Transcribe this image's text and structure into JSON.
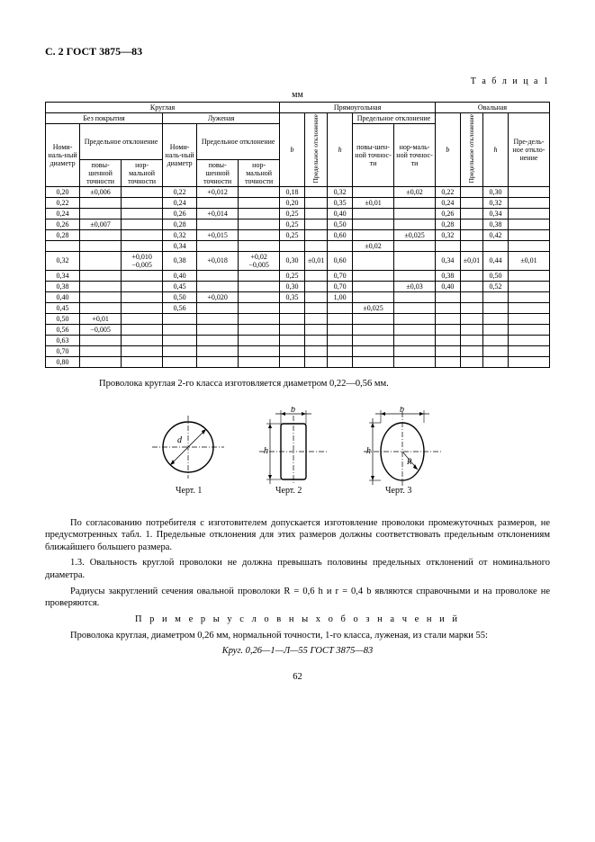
{
  "header": "С. 2 ГОСТ 3875—83",
  "tableLabel": "Т а б л и ц а 1",
  "unit": "мм",
  "headers": {
    "kruglaya": "Круглая",
    "pryam": "Прямоугольная",
    "oval": "Овальная",
    "bezpokr": "Без покрытия",
    "luzh": "Луженая",
    "nomdiam": "Номи-наль-ный диаметр",
    "predotk": "Предельное отклонение",
    "pov": "повы-шенной точности",
    "norm": "нор-мальной точности",
    "b": "b",
    "h": "h",
    "predotk_v": "Предельное отклонение",
    "pov2": "повы-шен-ной точнос-ти",
    "norm2": "нор-маль-ной точнос-ти",
    "predeln": "Пре-дель-ное откло-нение"
  },
  "rows": [
    {
      "d": "0,20",
      "t1": "±0,006",
      "t2": "",
      "ld": "0,22",
      "lt1": "+0,012",
      "lt2": "",
      "pb": "0,18",
      "pv": "",
      "ph": "0,32",
      "pt1": "",
      "pt2": "±0,02",
      "ob": "0,22",
      "ov": "",
      "oh": "0,30",
      "ot": ""
    },
    {
      "d": "0,22",
      "t1": "",
      "t2": "",
      "ld": "0,24",
      "lt1": "",
      "lt2": "",
      "pb": "0,20",
      "pv": "",
      "ph": "0,35",
      "pt1": "±0,01",
      "pt2": "",
      "ob": "0,24",
      "ov": "",
      "oh": "0,32",
      "ot": ""
    },
    {
      "d": "0,24",
      "t1": "",
      "t2": "",
      "ld": "0,26",
      "lt1": "+0,014",
      "lt2": "",
      "pb": "0,25",
      "pv": "",
      "ph": "0,40",
      "pt1": "",
      "pt2": "",
      "ob": "0,26",
      "ov": "",
      "oh": "0,34",
      "ot": ""
    },
    {
      "d": "0,26",
      "t1": "±0,007",
      "t2": "",
      "ld": "0,28",
      "lt1": "",
      "lt2": "",
      "pb": "0,25",
      "pv": "",
      "ph": "0,50",
      "pt1": "",
      "pt2": "",
      "ob": "0,28",
      "ov": "",
      "oh": "0,38",
      "ot": ""
    },
    {
      "d": "0,28",
      "t1": "",
      "t2": "",
      "ld": "0,32",
      "lt1": "+0,015",
      "lt2": "",
      "pb": "0,25",
      "pv": "",
      "ph": "0,60",
      "pt1": "",
      "pt2": "±0,025",
      "ob": "0,32",
      "ov": "",
      "oh": "0,42",
      "ot": ""
    },
    {
      "d": "",
      "t1": "",
      "t2": "",
      "ld": "0,34",
      "lt1": "",
      "lt2": "",
      "pb": "",
      "pv": "",
      "ph": "",
      "pt1": "±0,02",
      "pt2": "",
      "ob": "",
      "ov": "",
      "oh": "",
      "ot": ""
    },
    {
      "d": "0,32",
      "t1": "",
      "t2": "+0,010 −0,005",
      "ld": "0,38",
      "lt1": "+0,018",
      "lt2": "+0,02 −0,005",
      "pb": "0,30",
      "pv": "±0,01",
      "ph": "0,60",
      "pt1": "",
      "pt2": "",
      "ob": "0,34",
      "ov": "±0,01",
      "oh": "0,44",
      "ot": "±0,01"
    },
    {
      "d": "0,34",
      "t1": "",
      "t2": "",
      "ld": "0,40",
      "lt1": "",
      "lt2": "",
      "pb": "0,25",
      "pv": "",
      "ph": "0,70",
      "pt1": "",
      "pt2": "",
      "ob": "0,38",
      "ov": "",
      "oh": "0,50",
      "ot": ""
    },
    {
      "d": "0,38",
      "t1": "",
      "t2": "",
      "ld": "0,45",
      "lt1": "",
      "lt2": "",
      "pb": "0,30",
      "pv": "",
      "ph": "0,70",
      "pt1": "",
      "pt2": "±0,03",
      "ob": "0,40",
      "ov": "",
      "oh": "0,52",
      "ot": ""
    },
    {
      "d": "0,40",
      "t1": "",
      "t2": "",
      "ld": "0,50",
      "lt1": "+0,020",
      "lt2": "",
      "pb": "0,35",
      "pv": "",
      "ph": "1,00",
      "pt1": "",
      "pt2": "",
      "ob": "",
      "ov": "",
      "oh": "",
      "ot": ""
    },
    {
      "d": "0,45",
      "t1": "",
      "t2": "",
      "ld": "0,56",
      "lt1": "",
      "lt2": "",
      "pb": "",
      "pv": "",
      "ph": "",
      "pt1": "±0,025",
      "pt2": "",
      "ob": "",
      "ov": "",
      "oh": "",
      "ot": ""
    },
    {
      "d": "0,50",
      "t1": "+0,01",
      "t2": "",
      "ld": "",
      "lt1": "",
      "lt2": "",
      "pb": "",
      "pv": "",
      "ph": "",
      "pt1": "",
      "pt2": "",
      "ob": "",
      "ov": "",
      "oh": "",
      "ot": ""
    },
    {
      "d": "0,56",
      "t1": "−0,005",
      "t2": "",
      "ld": "",
      "lt1": "",
      "lt2": "",
      "pb": "",
      "pv": "",
      "ph": "",
      "pt1": "",
      "pt2": "",
      "ob": "",
      "ov": "",
      "oh": "",
      "ot": ""
    },
    {
      "d": "0,63",
      "t1": "",
      "t2": "",
      "ld": "",
      "lt1": "",
      "lt2": "",
      "pb": "",
      "pv": "",
      "ph": "",
      "pt1": "",
      "pt2": "",
      "ob": "",
      "ov": "",
      "oh": "",
      "ot": ""
    },
    {
      "d": "0,70",
      "t1": "",
      "t2": "",
      "ld": "",
      "lt1": "",
      "lt2": "",
      "pb": "",
      "pv": "",
      "ph": "",
      "pt1": "",
      "pt2": "",
      "ob": "",
      "ov": "",
      "oh": "",
      "ot": ""
    },
    {
      "d": "0,80",
      "t1": "",
      "t2": "",
      "ld": "",
      "lt1": "",
      "lt2": "",
      "pb": "",
      "pv": "",
      "ph": "",
      "pt1": "",
      "pt2": "",
      "ob": "",
      "ov": "",
      "oh": "",
      "ot": ""
    }
  ],
  "note1": "Проволока круглая 2-го класса изготовляется диаметром 0,22—0,56 мм.",
  "figlabels": {
    "f1": "Черт. 1",
    "f2": "Черт. 2",
    "f3": "Черт. 3",
    "b": "b",
    "h": "h",
    "d": "d",
    "R": "R"
  },
  "para1": "По согласованию потребителя с изготовителем допускается изготовление проволоки промежуточных размеров, не предусмотренных табл. 1. Предельные отклонения для этих размеров должны соответствовать предельным отклонениям ближайшего большего размера.",
  "para2": "1.3. Овальность круглой проволоки не должна превышать половины предельных отклонений от номинального диаметра.",
  "para3": "Радиусы закруглений сечения овальной проволоки R = 0,6 h и r = 0,4 b являются справочными и на проволоке не проверяются.",
  "para4": "П р и м е р ы   у с л о в н ы х   о б о з н а ч е н и й",
  "para5": "Проволока круглая, диаметром 0,26 мм, нормальной точности, 1-го класса, луженая, из стали марки 55:",
  "para6": "Круг. 0,26—1—Л—55 ГОСТ 3875—83",
  "pagenum": "62",
  "style": {
    "stroke": "#000",
    "strokewidth": 1.2,
    "dash": "4,2"
  }
}
